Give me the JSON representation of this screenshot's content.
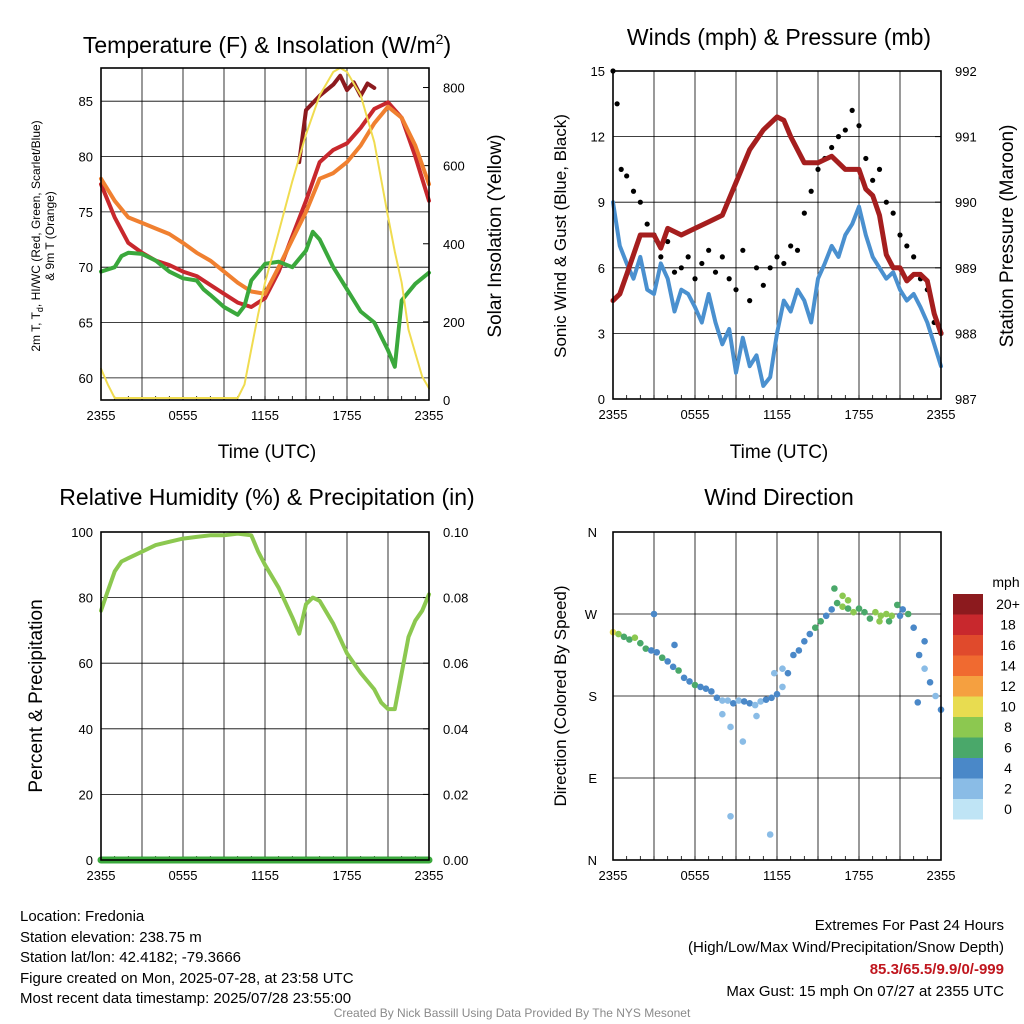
{
  "chart_data": [
    {
      "type": "line",
      "title": "Temperature (F) & Insolation (W/m²)",
      "xlabel": "Time (UTC)",
      "ylabel": "2m T, Td, HI/WC (Red, Green, Scarlet/Blue) & 9m T (Orange)",
      "ylabel_line1": "2m T, T",
      "ylabel_sub": "d",
      "ylabel_line1b": ", HI/WC (Red, Green, Scarlet/Blue)",
      "ylabel_line2": "& 9m T (Orange)",
      "y2label": "Solar Insolation (Yellow)",
      "x_ticks": [
        "2355",
        "0555",
        "1155",
        "1755",
        "2355"
      ],
      "x_range": [
        0,
        24
      ],
      "ylim": [
        58,
        88
      ],
      "y_ticks": [
        60,
        65,
        70,
        75,
        80,
        85
      ],
      "y2lim": [
        0,
        850
      ],
      "y2_ticks": [
        0,
        200,
        400,
        600,
        800
      ],
      "series": [
        {
          "color": "#c8282d",
          "x": [
            0,
            1,
            2,
            3,
            4,
            5,
            6,
            7,
            8,
            9,
            10,
            11,
            12,
            13,
            14,
            15,
            16,
            17,
            18,
            19,
            20,
            21,
            22,
            23,
            24
          ],
          "values": [
            77.5,
            74.5,
            72.2,
            71.3,
            70.6,
            70.2,
            69.6,
            69.2,
            68.4,
            67.6,
            66.8,
            66.4,
            67.2,
            69.6,
            72.8,
            76.0,
            79.5,
            80.6,
            81.2,
            82.6,
            84.3,
            84.9,
            83.5,
            80.0,
            76.0
          ]
        },
        {
          "color": "#8c1a1e",
          "x": [
            14.5,
            15,
            16,
            17,
            17.5,
            18,
            18.5,
            19,
            19.5,
            20
          ],
          "values": [
            79.5,
            84.2,
            85.5,
            86.5,
            87.3,
            86.0,
            86.7,
            85.5,
            86.6,
            86.2
          ]
        },
        {
          "color": "#f08030",
          "x": [
            0,
            1,
            2,
            3,
            4,
            5,
            6,
            7,
            8,
            9,
            10,
            11,
            12,
            13,
            14,
            15,
            16,
            17,
            18,
            19,
            20,
            21,
            22,
            23,
            24
          ],
          "values": [
            78.0,
            76.0,
            74.5,
            74.0,
            73.5,
            73.0,
            72.2,
            71.3,
            70.6,
            69.6,
            68.6,
            67.8,
            67.6,
            70.0,
            72.5,
            75.0,
            78.0,
            78.5,
            79.5,
            81.0,
            83.0,
            84.5,
            83.5,
            81.0,
            77.5
          ]
        },
        {
          "color": "#3aa83c",
          "x": [
            0,
            1,
            1.5,
            2,
            3,
            4,
            5,
            6,
            7,
            7.5,
            8,
            9,
            10,
            10.5,
            11,
            12,
            13,
            14,
            15,
            15.5,
            16,
            17,
            18,
            19,
            20,
            21,
            21.5,
            22,
            23,
            24
          ],
          "values": [
            69.6,
            70.0,
            71.0,
            71.3,
            71.2,
            70.6,
            69.6,
            69.0,
            68.8,
            68.0,
            67.5,
            66.4,
            65.7,
            66.5,
            68.8,
            70.3,
            70.5,
            70.0,
            71.5,
            73.2,
            72.5,
            70.0,
            68.0,
            66.0,
            65.0,
            62.5,
            61.0,
            67.0,
            68.5,
            69.5
          ]
        },
        {
          "color": "#f0dc50",
          "axis": "right",
          "x": [
            0,
            0.5,
            1,
            10,
            10.5,
            11,
            11.5,
            12,
            13,
            14,
            15,
            16,
            16.5,
            17,
            17.5,
            18,
            18.5,
            19,
            20,
            21,
            21.5,
            22,
            22.5,
            23,
            23.5,
            24
          ],
          "values": [
            80,
            40,
            5,
            5,
            40,
            130,
            220,
            300,
            430,
            560,
            680,
            780,
            810,
            840,
            850,
            840,
            810,
            780,
            660,
            470,
            380,
            300,
            180,
            120,
            60,
            30
          ]
        }
      ]
    },
    {
      "type": "line",
      "title": "Winds (mph) & Pressure (mb)",
      "xlabel": "Time (UTC)",
      "ylabel": "Sonic Wind & Gust (Blue, Black)",
      "y2label": "Station Pressure (Maroon)",
      "x_ticks": [
        "2355",
        "0555",
        "1155",
        "1755",
        "2355"
      ],
      "x_range": [
        0,
        24
      ],
      "ylim": [
        0,
        15
      ],
      "y_ticks": [
        0,
        3,
        6,
        9,
        12,
        15
      ],
      "y2lim": [
        987,
        992
      ],
      "y2_ticks": [
        987,
        988,
        989,
        990,
        991,
        992
      ],
      "series": [
        {
          "name": "Sonic Wind",
          "color": "#4a90cf",
          "x": [
            0,
            0.5,
            1,
            1.5,
            2,
            2.5,
            3,
            3.5,
            4,
            4.5,
            5,
            5.5,
            6,
            6.5,
            7,
            7.5,
            8,
            8.5,
            9,
            9.5,
            10,
            10.5,
            11,
            11.5,
            12,
            12.5,
            13,
            13.5,
            14,
            14.5,
            15,
            15.5,
            16,
            16.5,
            17,
            17.5,
            18,
            18.5,
            19,
            19.5,
            20,
            20.5,
            21,
            21.5,
            22,
            22.5,
            23,
            23.5,
            24
          ],
          "values": [
            9.0,
            7.0,
            6.2,
            5.5,
            6.5,
            5.0,
            4.8,
            6.2,
            5.5,
            4.0,
            5.0,
            4.8,
            4.2,
            3.5,
            4.8,
            3.5,
            2.5,
            3.2,
            1.2,
            2.8,
            1.5,
            2.0,
            0.6,
            1.0,
            3.0,
            4.5,
            4.0,
            5.0,
            4.5,
            3.5,
            5.5,
            6.2,
            7.0,
            6.5,
            7.5,
            8.0,
            8.8,
            7.5,
            6.5,
            6.0,
            5.5,
            5.8,
            5.0,
            4.5,
            4.8,
            4.2,
            3.5,
            2.5,
            1.5
          ]
        },
        {
          "name": "Gust",
          "color": "#000000",
          "style": "dots",
          "x": [
            0,
            0.3,
            0.6,
            1,
            1.5,
            2,
            2.5,
            3,
            3.5,
            4,
            4.5,
            5,
            5.5,
            6,
            6.5,
            7,
            7.5,
            8,
            8.5,
            9,
            9.5,
            10,
            10.5,
            11,
            11.5,
            12,
            12.5,
            13,
            13.5,
            14,
            14.5,
            15,
            15.5,
            16,
            16.5,
            17,
            17.5,
            18,
            18.5,
            19,
            19.5,
            20,
            20.5,
            21,
            21.5,
            22,
            22.5,
            23,
            23.5,
            24
          ],
          "values": [
            15,
            13.5,
            10.5,
            10.2,
            9.5,
            9.0,
            8.0,
            7.5,
            6.5,
            7.2,
            5.8,
            6.0,
            6.5,
            5.5,
            6.2,
            6.8,
            5.8,
            6.5,
            5.5,
            5.0,
            6.8,
            4.5,
            6.0,
            5.2,
            6.0,
            6.5,
            6.2,
            7.0,
            6.8,
            8.5,
            9.5,
            10.5,
            11.0,
            11.5,
            12.0,
            12.3,
            13.2,
            12.5,
            11.0,
            10.0,
            10.5,
            9.0,
            8.5,
            7.5,
            7.0,
            6.5,
            5.5,
            5.0,
            3.5,
            3.0
          ]
        },
        {
          "name": "Station Pressure",
          "color": "#a51e1e",
          "axis": "right",
          "x": [
            0,
            0.5,
            1,
            2,
            3,
            3.5,
            4,
            5,
            6,
            7,
            8,
            9,
            10,
            11,
            12,
            12.5,
            13,
            14,
            15,
            16,
            17,
            18,
            18.5,
            19,
            19.5,
            20,
            20.5,
            21,
            21.5,
            22,
            22.5,
            23,
            23.5,
            24
          ],
          "values": [
            988.5,
            988.6,
            988.9,
            989.5,
            989.5,
            989.3,
            989.6,
            989.5,
            989.6,
            989.7,
            989.8,
            990.3,
            990.8,
            991.1,
            991.3,
            991.25,
            991.0,
            990.6,
            990.6,
            990.7,
            990.5,
            990.5,
            990.2,
            990.1,
            989.8,
            989.2,
            989.0,
            989.0,
            988.8,
            988.9,
            988.9,
            988.8,
            988.3,
            988.0
          ]
        }
      ]
    },
    {
      "type": "line",
      "title": "Relative Humidity (%) & Precipitation (in)",
      "xlabel": "",
      "ylabel": "Percent & Precipitation",
      "x_ticks": [
        "2355",
        "0555",
        "1155",
        "1755",
        "2355"
      ],
      "x_range": [
        0,
        24
      ],
      "ylim": [
        0,
        100
      ],
      "y_ticks": [
        0,
        20,
        40,
        60,
        80,
        100
      ],
      "y2lim": [
        0,
        0.1
      ],
      "y2_ticks": [
        "0.00",
        "0.02",
        "0.04",
        "0.06",
        "0.08",
        "0.10"
      ],
      "series": [
        {
          "name": "Relative Humidity",
          "color": "#8cc850",
          "x": [
            0,
            0.5,
            1,
            1.5,
            2,
            3,
            4,
            5,
            6,
            7,
            8,
            9,
            10,
            11,
            11.5,
            12,
            13,
            14,
            14.5,
            15,
            15.5,
            16,
            17,
            18,
            19,
            20,
            20.5,
            21,
            21.5,
            22,
            22.5,
            23,
            23.5,
            24
          ],
          "values": [
            76,
            82,
            88,
            91,
            92,
            94,
            96,
            97,
            98,
            98.5,
            99,
            99,
            99.5,
            99,
            94,
            90,
            83,
            74,
            69,
            78,
            80,
            79,
            72,
            63,
            57,
            52,
            48,
            46,
            46,
            57,
            68,
            73,
            76,
            81
          ]
        },
        {
          "name": "Precipitation",
          "color": "#3aa83c",
          "axis": "right",
          "x": [
            0,
            24
          ],
          "values": [
            0.0,
            0.0
          ]
        }
      ]
    },
    {
      "type": "scatter",
      "title": "Wind Direction",
      "ylabel": "Direction (Colored By Speed)",
      "x_ticks": [
        "2355",
        "0555",
        "1155",
        "1755",
        "2355"
      ],
      "x_range": [
        0,
        24
      ],
      "ylim": [
        0,
        360
      ],
      "y_tick_labels": [
        "N",
        "E",
        "S",
        "W",
        "N"
      ],
      "y_tick_values": [
        0,
        90,
        180,
        270,
        360
      ],
      "legend": {
        "title": "mph",
        "labels": [
          "20+",
          "18",
          "16",
          "14",
          "12",
          "10",
          "8",
          "6",
          "4",
          "2",
          "0"
        ],
        "colors": [
          "#8c1a1e",
          "#c8282d",
          "#e04a2c",
          "#f06a30",
          "#f5a040",
          "#e8dc50",
          "#8cc850",
          "#4aa86a",
          "#4a88c8",
          "#8abce6",
          "#bfe4f5"
        ]
      },
      "points": {
        "x": [
          0,
          0.4,
          0.8,
          1.2,
          1.6,
          2,
          2.4,
          2.8,
          3.2,
          3.6,
          4,
          4.4,
          4.8,
          5.2,
          5.6,
          6,
          6.4,
          6.8,
          7.2,
          7.6,
          8,
          8.4,
          8.8,
          9.2,
          9.6,
          10,
          10.4,
          10.8,
          11.2,
          11.6,
          12,
          12.4,
          12.8,
          13.2,
          13.6,
          14,
          14.4,
          14.8,
          15.2,
          15.6,
          16,
          16.4,
          16.8,
          17.2,
          17.6,
          18,
          18.4,
          18.8,
          19.2,
          19.6,
          20,
          20.4,
          20.8,
          21.2,
          21.6,
          22,
          22.4,
          22.8,
          23.2,
          23.6,
          24,
          3,
          4.5,
          8,
          8.6,
          9.5,
          10.5,
          11.8,
          12.4,
          8.6,
          11.5,
          16.2,
          16.8,
          17.2,
          19.5,
          20.2,
          21,
          22.8,
          22.3
        ],
        "y": [
          250,
          248,
          245,
          242,
          244,
          238,
          232,
          230,
          228,
          222,
          218,
          212,
          208,
          200,
          196,
          192,
          190,
          188,
          185,
          178,
          175,
          175,
          172,
          175,
          174,
          172,
          170,
          174,
          176,
          178,
          182,
          190,
          205,
          225,
          230,
          240,
          248,
          255,
          262,
          268,
          275,
          282,
          278,
          276,
          272,
          276,
          272,
          265,
          272,
          268,
          270,
          268,
          280,
          275,
          270,
          255,
          225,
          210,
          195,
          180,
          165,
          270,
          236,
          160,
          146,
          130,
          158,
          205,
          210,
          48,
          28,
          298,
          290,
          285,
          262,
          262,
          268,
          240,
          173
        ],
        "speeds": [
          10,
          8,
          6,
          6,
          8,
          6,
          6,
          4,
          4,
          6,
          4,
          4,
          6,
          4,
          4,
          6,
          4,
          4,
          4,
          4,
          2,
          2,
          4,
          2,
          4,
          4,
          2,
          2,
          4,
          4,
          4,
          2,
          4,
          4,
          4,
          4,
          4,
          6,
          6,
          4,
          4,
          6,
          8,
          6,
          8,
          6,
          6,
          6,
          8,
          8,
          8,
          8,
          6,
          4,
          6,
          4,
          4,
          2,
          4,
          2,
          4,
          4,
          4,
          2,
          2,
          2,
          2,
          2,
          2,
          2,
          2,
          6,
          8,
          8,
          8,
          6,
          4,
          4,
          4
        ]
      }
    }
  ],
  "info": {
    "location": "Location: Fredonia",
    "elevation": "Station elevation: 238.75 m",
    "latlon": "Station lat/lon: 42.4182; -79.3666",
    "created": "Figure created on Mon, 2025-07-28, at 23:58 UTC",
    "recent": "Most recent data timestamp: 2025/07/28 23:55:00"
  },
  "extremes": {
    "heading": "Extremes For Past 24 Hours",
    "subheading": "(High/Low/Max Wind/Precipitation/Snow Depth)",
    "values": "85.3/65.5/9.9/0/-999",
    "gust": "Max Gust: 15 mph On 07/27 at 2355 UTC"
  },
  "credit": "Created By Nick Bassill Using Data Provided By The NYS Mesonet",
  "title_parts": {
    "temp_prefix": "Temperature (F) & Insolation (W/m",
    "temp_sup": "2",
    "temp_suffix": ")"
  }
}
